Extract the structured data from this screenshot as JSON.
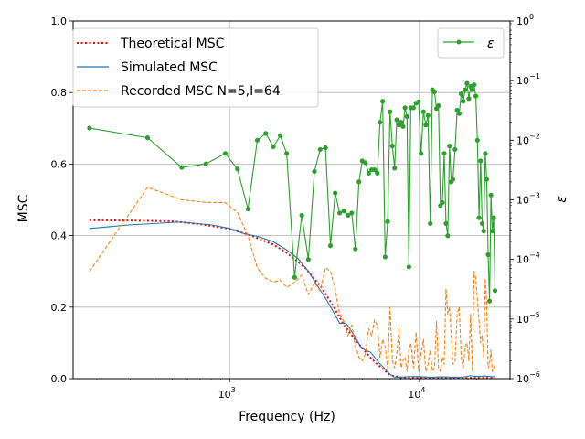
{
  "chart_data": {
    "type": "line",
    "xlabel": "Frequency (Hz)",
    "ylabel": "MSC",
    "y2label": "ε",
    "xscale": "log",
    "xlim": [
      150,
      30000
    ],
    "ylim": [
      0,
      1.0
    ],
    "y2scale": "log",
    "y2lim": [
      1e-06,
      1
    ],
    "grid": true,
    "legend_left": "top-left",
    "legend_right": "top-right",
    "x_ticks": [
      {
        "value": 1000,
        "base": "10",
        "exp": "3"
      },
      {
        "value": 10000,
        "base": "10",
        "exp": "4"
      }
    ],
    "y_ticks": [
      {
        "value": 0.0,
        "label": "0.0"
      },
      {
        "value": 0.2,
        "label": "0.2"
      },
      {
        "value": 0.4,
        "label": "0.4"
      },
      {
        "value": 0.6,
        "label": "0.6"
      },
      {
        "value": 0.8,
        "label": "0.8"
      },
      {
        "value": 1.0,
        "label": "1.0"
      }
    ],
    "y2_ticks": [
      {
        "value": 1e-06,
        "base": "10",
        "exp": "−6"
      },
      {
        "value": 1e-05,
        "base": "10",
        "exp": "−5"
      },
      {
        "value": 0.0001,
        "base": "10",
        "exp": "−4"
      },
      {
        "value": 0.001,
        "base": "10",
        "exp": "−3"
      },
      {
        "value": 0.01,
        "base": "10",
        "exp": "−2"
      },
      {
        "value": 0.1,
        "base": "10",
        "exp": "−1"
      },
      {
        "value": 1,
        "base": "10",
        "exp": "0"
      }
    ],
    "series": [
      {
        "name": "Theoretical MSC",
        "color": "#ff0000",
        "style": "dotted",
        "axis": "left",
        "x": [
          183,
          300,
          500,
          700,
          1000,
          1300,
          1700,
          2000,
          2500,
          3000,
          3500,
          4000,
          4500,
          5000,
          5500,
          6000,
          7000,
          8000,
          9000,
          10000,
          15000,
          20000,
          25000
        ],
        "y": [
          0.443,
          0.442,
          0.44,
          0.432,
          0.419,
          0.4,
          0.375,
          0.352,
          0.31,
          0.26,
          0.205,
          0.15,
          0.115,
          0.085,
          0.06,
          0.04,
          0.01,
          0.003,
          0.002,
          0.002,
          0.002,
          0.002,
          0.002
        ]
      },
      {
        "name": "Simulated MSC",
        "color": "#1f77b4",
        "style": "solid",
        "axis": "left",
        "x": [
          183,
          300,
          550,
          800,
          1000,
          1200,
          1400,
          1700,
          2000,
          2300,
          2600,
          2900,
          3200,
          3500,
          3800,
          4100,
          4300,
          4600,
          4900,
          5200,
          5500,
          5800,
          6100,
          6500,
          6900,
          7300,
          7800,
          8500,
          9500,
          10500,
          11500,
          13000,
          15000,
          17000,
          18500,
          20000,
          22000,
          25000
        ],
        "y": [
          0.42,
          0.43,
          0.438,
          0.43,
          0.42,
          0.405,
          0.398,
          0.383,
          0.36,
          0.335,
          0.3,
          0.26,
          0.225,
          0.19,
          0.155,
          0.155,
          0.14,
          0.115,
          0.09,
          0.078,
          0.075,
          0.06,
          0.045,
          0.03,
          0.015,
          0.005,
          0.004,
          0.005,
          0.006,
          0.005,
          0.004,
          0.005,
          0.004,
          0.004,
          0.008,
          0.006,
          0.007,
          0.005
        ]
      },
      {
        "name": "Recorded MSC N=5,I=64",
        "color": "#ff7f0e",
        "style": "dashed",
        "axis": "left",
        "x": [
          183,
          370,
          560,
          750,
          950,
          1100,
          1250,
          1400,
          1550,
          1700,
          1850,
          2000,
          2200,
          2400,
          2600,
          2800,
          3000,
          3200,
          3400,
          3600,
          3800,
          4000,
          4200,
          4400,
          4600,
          4800,
          5000,
          5200,
          5400,
          5600,
          5800,
          6000,
          6200,
          6400,
          6600,
          6800,
          7000,
          7200,
          7400,
          7600,
          7800,
          8000,
          8200,
          8400,
          8600,
          8800,
          9000,
          9300,
          9600,
          9900,
          10200,
          10500,
          10800,
          11100,
          11400,
          11700,
          12000,
          12300,
          12600,
          12900,
          13200,
          13500,
          13800,
          14100,
          14400,
          14700,
          15000,
          15400,
          15800,
          16200,
          16600,
          17000,
          17400,
          17800,
          18200,
          18600,
          19000,
          19400,
          19800,
          20200,
          20600,
          21000,
          21400,
          21800,
          22200,
          22600,
          23000,
          23400,
          23800,
          24200,
          24600,
          25000
        ],
        "y": [
          0.3,
          0.535,
          0.5,
          0.493,
          0.492,
          0.465,
          0.4,
          0.31,
          0.28,
          0.27,
          0.275,
          0.255,
          0.27,
          0.29,
          0.235,
          0.268,
          0.245,
          0.31,
          0.3,
          0.25,
          0.18,
          0.16,
          0.12,
          0.15,
          0.09,
          0.06,
          0.05,
          0.07,
          0.14,
          0.12,
          0.165,
          0.15,
          0.06,
          0.11,
          0.09,
          0.03,
          0.2,
          0.05,
          0.03,
          0.07,
          0.14,
          0.03,
          0.05,
          0.06,
          0.02,
          0.08,
          0.1,
          0.03,
          0.13,
          0.02,
          0.07,
          0.11,
          0.02,
          0.04,
          0.08,
          0.02,
          0.03,
          0.16,
          0.03,
          0.02,
          0.06,
          0.04,
          0.25,
          0.18,
          0.2,
          0.12,
          0.04,
          0.05,
          0.18,
          0.2,
          0.06,
          0.03,
          0.09,
          0.1,
          0.05,
          0.18,
          0.02,
          0.3,
          0.28,
          0.22,
          0.16,
          0.1,
          0.12,
          0.06,
          0.28,
          0.21,
          0.03,
          0.04,
          0.08,
          0.02,
          0.03,
          0.04
        ]
      },
      {
        "name": "ε",
        "color": "#2ca02c",
        "style": "solid",
        "marker": "circle",
        "axis": "right",
        "x": [
          183,
          370,
          560,
          750,
          950,
          1100,
          1250,
          1400,
          1550,
          1700,
          1850,
          2000,
          2200,
          2400,
          2600,
          2800,
          3000,
          3200,
          3400,
          3600,
          3800,
          4000,
          4200,
          4400,
          4600,
          4800,
          5000,
          5200,
          5400,
          5600,
          5800,
          6000,
          6200,
          6400,
          6600,
          6800,
          7000,
          7200,
          7400,
          7600,
          7800,
          8000,
          8200,
          8400,
          8600,
          8800,
          9000,
          9300,
          9600,
          9900,
          10200,
          10500,
          10800,
          11100,
          11400,
          11700,
          12000,
          12300,
          12600,
          12900,
          13200,
          13500,
          13800,
          14100,
          14400,
          14700,
          15000,
          15400,
          15800,
          16200,
          16600,
          17000,
          17400,
          17800,
          18200,
          18600,
          19000,
          19400,
          19800,
          20200,
          20600,
          21000,
          21400,
          21800,
          22200,
          22600,
          23000,
          23400,
          23800,
          24200,
          24600,
          25000
        ],
        "y": [
          0.016,
          0.011,
          0.0035,
          0.004,
          0.006,
          0.0033,
          0.0007,
          0.01,
          0.013,
          0.0078,
          0.012,
          0.006,
          5e-05,
          0.00055,
          0.0001,
          0.003,
          0.007,
          0.0075,
          0.00017,
          0.0013,
          0.0006,
          0.00065,
          0.00055,
          0.0006,
          0.00015,
          0.002,
          0.0045,
          0.0042,
          0.0028,
          0.0032,
          0.0032,
          0.0028,
          0.02,
          0.045,
          0.00011,
          0.00043,
          0.03,
          0.008,
          0.0034,
          0.022,
          0.018,
          0.02,
          0.017,
          0.035,
          0.025,
          7.5e-05,
          0.035,
          0.035,
          0.042,
          0.044,
          0.006,
          0.03,
          0.018,
          0.026,
          0.0004,
          0.07,
          0.065,
          0.034,
          0.038,
          0.0008,
          0.0009,
          0.006,
          0.0004,
          0.00025,
          0.008,
          0.002,
          0.0022,
          0.007,
          0.032,
          0.028,
          0.06,
          0.045,
          0.07,
          0.09,
          0.05,
          0.08,
          0.07,
          0.085,
          0.055,
          0.01,
          0.0005,
          0.0045,
          0.0004,
          0.0003,
          0.006,
          0.0022,
          0.00012,
          2e-05,
          0.0012,
          0.0003,
          0.0005,
          3e-05
        ]
      }
    ]
  }
}
